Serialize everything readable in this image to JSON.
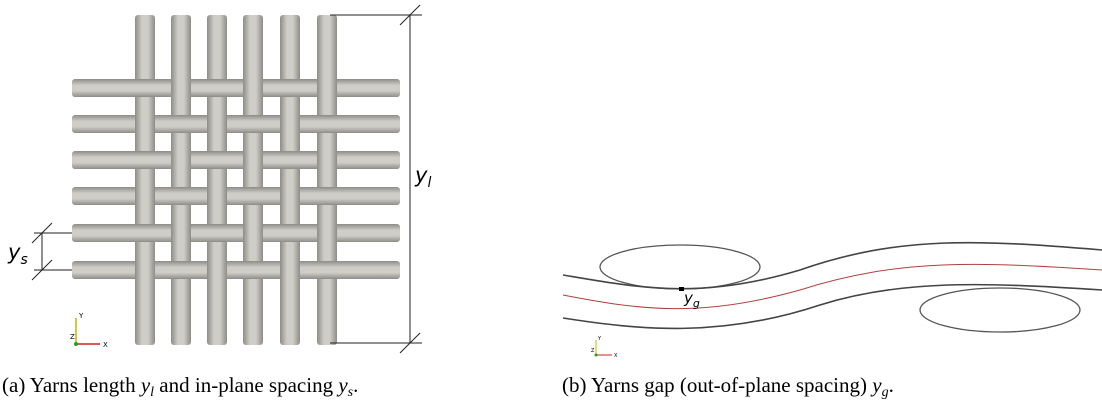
{
  "panel_a": {
    "dim_long": [
      "y",
      "l"
    ],
    "dim_spacing": [
      "y",
      "s"
    ],
    "axes": [
      "Y",
      "Z",
      "X"
    ]
  },
  "panel_b": {
    "dim_gap": [
      "y",
      "g"
    ],
    "axes": [
      "Y",
      "Z",
      "X"
    ]
  },
  "caption_a": [
    "(a) Yarns length",
    "y",
    "l",
    "and in-plane spacing",
    "y",
    "s",
    "."
  ],
  "caption_b": [
    "(b) Yarns gap (out-of-plane spacing)",
    "y",
    "g",
    "."
  ]
}
